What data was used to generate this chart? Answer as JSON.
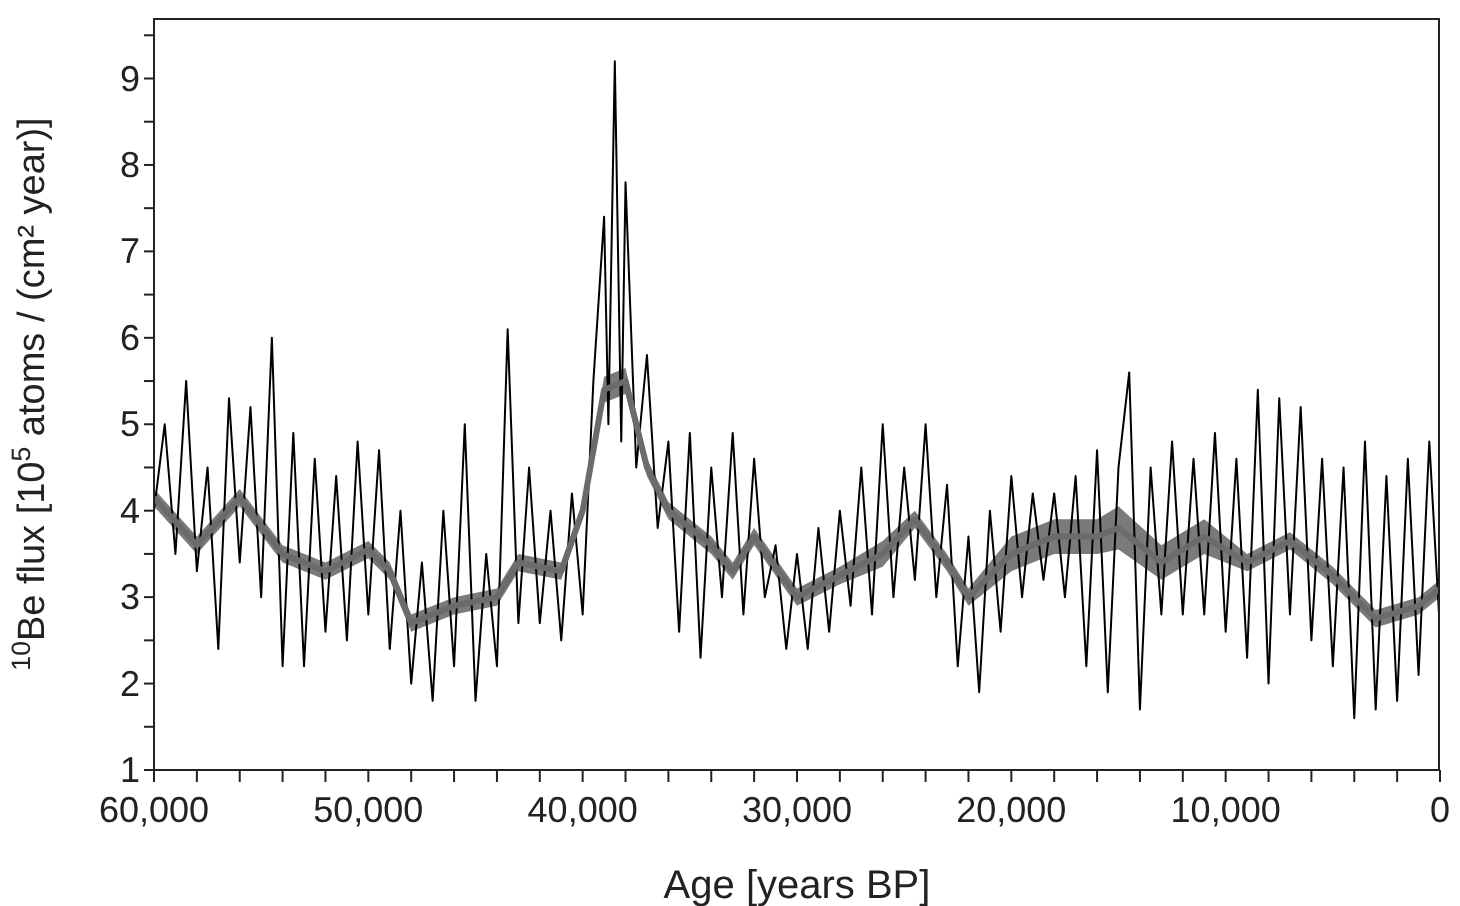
{
  "chart_data": {
    "type": "line",
    "xlabel": "Age [years BP]",
    "ylabel": "$^{10}$Be flux [10$^{5}$ atoms / (cm² year)]",
    "xlim": [
      60000,
      0
    ],
    "xticks": [
      {
        "value": 60000,
        "label": "60,000"
      },
      {
        "value": 58000,
        "label": null
      },
      {
        "value": 56000,
        "label": null
      },
      {
        "value": 54000,
        "label": null
      },
      {
        "value": 52000,
        "label": null
      },
      {
        "value": 50000,
        "label": "50,000"
      },
      {
        "value": 48000,
        "label": null
      },
      {
        "value": 46000,
        "label": null
      },
      {
        "value": 44000,
        "label": null
      },
      {
        "value": 42000,
        "label": null
      },
      {
        "value": 40000,
        "label": "40,000"
      },
      {
        "value": 38000,
        "label": null
      },
      {
        "value": 36000,
        "label": null
      },
      {
        "value": 34000,
        "label": null
      },
      {
        "value": 32000,
        "label": null
      },
      {
        "value": 30000,
        "label": "30,000"
      },
      {
        "value": 28000,
        "label": null
      },
      {
        "value": 26000,
        "label": null
      },
      {
        "value": 24000,
        "label": null
      },
      {
        "value": 22000,
        "label": null
      },
      {
        "value": 20000,
        "label": "20,000"
      },
      {
        "value": 18000,
        "label": null
      },
      {
        "value": 16000,
        "label": null
      },
      {
        "value": 14000,
        "label": null
      },
      {
        "value": 12000,
        "label": null
      },
      {
        "value": 10000,
        "label": "10,000"
      },
      {
        "value": 8000,
        "label": null
      },
      {
        "value": 6000,
        "label": null
      },
      {
        "value": 4000,
        "label": null
      },
      {
        "value": 2000,
        "label": null
      },
      {
        "value": 0,
        "label": "0"
      }
    ],
    "ylim": [
      1,
      9.7
    ],
    "yticks": [
      1,
      {
        "value": 1.5,
        "label": null
      },
      2,
      {
        "value": 2.5,
        "label": null
      },
      3,
      {
        "value": 3.5,
        "label": null
      },
      4,
      {
        "value": 4.5,
        "label": null
      },
      5,
      {
        "value": 5.5,
        "label": null
      },
      6,
      {
        "value": 6.5,
        "label": null
      },
      7,
      {
        "value": 7.5,
        "label": null
      },
      8,
      {
        "value": 8.5,
        "label": null
      },
      9,
      {
        "value": 9.5,
        "label": null
      }
    ],
    "grid": false,
    "legend": false,
    "marker": "none",
    "line_style": "solid",
    "series": [
      {
        "color": "#000000",
        "x": [
          60000,
          59500,
          59000,
          58500,
          58000,
          57500,
          57000,
          56500,
          56000,
          55500,
          55000,
          54500,
          54000,
          53500,
          53000,
          52500,
          52000,
          51500,
          51000,
          50500,
          50000,
          49500,
          49000,
          48500,
          48000,
          47500,
          47000,
          46500,
          46000,
          45500,
          45000,
          44500,
          44000,
          43500,
          43000,
          42500,
          42000,
          41500,
          41000,
          40500,
          40000,
          39500,
          39000,
          38800,
          38500,
          38200,
          38000,
          37500,
          37000,
          36500,
          36000,
          35500,
          35000,
          34500,
          34000,
          33500,
          33000,
          32500,
          32000,
          31500,
          31000,
          30500,
          30000,
          29500,
          29000,
          28500,
          28000,
          27500,
          27000,
          26500,
          26000,
          25500,
          25000,
          24500,
          24000,
          23500,
          23000,
          22500,
          22000,
          21500,
          21000,
          20500,
          20000,
          19500,
          19000,
          18500,
          18000,
          17500,
          17000,
          16500,
          16000,
          15500,
          15000,
          14500,
          14000,
          13500,
          13000,
          12500,
          12000,
          11500,
          11000,
          10500,
          10000,
          9500,
          9000,
          8500,
          8000,
          7500,
          7000,
          6500,
          6000,
          5500,
          5000,
          4500,
          4000,
          3500,
          3000,
          2500,
          2000,
          1500,
          1000,
          500,
          0
        ],
        "values": [
          4.0,
          5.0,
          3.5,
          5.5,
          3.3,
          4.5,
          2.4,
          5.3,
          3.4,
          5.2,
          3.0,
          6.0,
          2.2,
          4.9,
          2.2,
          4.6,
          2.6,
          4.4,
          2.5,
          4.8,
          2.8,
          4.7,
          2.4,
          4.0,
          2.0,
          3.4,
          1.8,
          4.0,
          2.2,
          5.0,
          1.8,
          3.5,
          2.2,
          6.1,
          2.7,
          4.5,
          2.7,
          4.0,
          2.5,
          4.2,
          2.8,
          5.5,
          7.4,
          5.0,
          9.2,
          4.8,
          7.8,
          4.5,
          5.8,
          3.8,
          4.8,
          2.6,
          4.9,
          2.3,
          4.5,
          3.0,
          4.9,
          2.8,
          4.6,
          3.0,
          3.6,
          2.4,
          3.5,
          2.4,
          3.8,
          2.6,
          4.0,
          2.9,
          4.5,
          2.8,
          5.0,
          3.0,
          4.5,
          3.2,
          5.0,
          3.0,
          4.3,
          2.2,
          3.7,
          1.9,
          4.0,
          2.6,
          4.4,
          3.0,
          4.2,
          3.2,
          4.2,
          3.0,
          4.4,
          2.2,
          4.7,
          1.9,
          4.5,
          5.6,
          1.7,
          4.5,
          2.8,
          4.8,
          2.8,
          4.6,
          2.8,
          4.9,
          2.6,
          4.6,
          2.3,
          5.4,
          2.0,
          5.3,
          2.8,
          5.2,
          2.5,
          4.6,
          2.2,
          4.5,
          1.6,
          4.8,
          1.7,
          4.4,
          1.8,
          4.6,
          2.1,
          4.8,
          2.6
        ]
      },
      {
        "color": "#6b6b6b",
        "x": [
          60000,
          58000,
          56000,
          54000,
          52000,
          50000,
          49000,
          48000,
          46000,
          44000,
          43000,
          41000,
          40000,
          39000,
          38000,
          37000,
          36000,
          34000,
          33000,
          32000,
          30000,
          28000,
          26000,
          24500,
          23000,
          22000,
          20000,
          18000,
          16000,
          15000,
          13000,
          11000,
          9000,
          7000,
          5000,
          3000,
          1000,
          0
        ],
        "values": [
          4.15,
          3.6,
          4.15,
          3.5,
          3.3,
          3.55,
          3.3,
          2.7,
          2.9,
          3.0,
          3.4,
          3.3,
          4.0,
          5.4,
          5.5,
          4.5,
          4.0,
          3.6,
          3.3,
          3.7,
          3.0,
          3.25,
          3.5,
          3.9,
          3.4,
          3.0,
          3.5,
          3.7,
          3.7,
          3.8,
          3.4,
          3.7,
          3.4,
          3.65,
          3.25,
          2.75,
          2.9,
          3.1
        ],
        "lower": [
          4.05,
          3.5,
          4.05,
          3.4,
          3.2,
          3.45,
          3.2,
          2.6,
          2.8,
          2.9,
          3.3,
          3.2,
          3.9,
          5.25,
          5.35,
          4.4,
          3.9,
          3.5,
          3.2,
          3.6,
          2.9,
          3.15,
          3.35,
          3.8,
          3.3,
          2.9,
          3.3,
          3.5,
          3.5,
          3.55,
          3.2,
          3.5,
          3.3,
          3.55,
          3.15,
          2.65,
          2.8,
          3.0
        ],
        "upper": [
          4.25,
          3.7,
          4.25,
          3.6,
          3.4,
          3.65,
          3.4,
          2.8,
          3.0,
          3.1,
          3.5,
          3.4,
          4.1,
          5.55,
          5.65,
          4.6,
          4.1,
          3.7,
          3.4,
          3.8,
          3.1,
          3.35,
          3.65,
          4.0,
          3.5,
          3.1,
          3.7,
          3.9,
          3.9,
          4.05,
          3.6,
          3.9,
          3.5,
          3.75,
          3.35,
          2.85,
          3.0,
          3.2
        ]
      }
    ]
  }
}
